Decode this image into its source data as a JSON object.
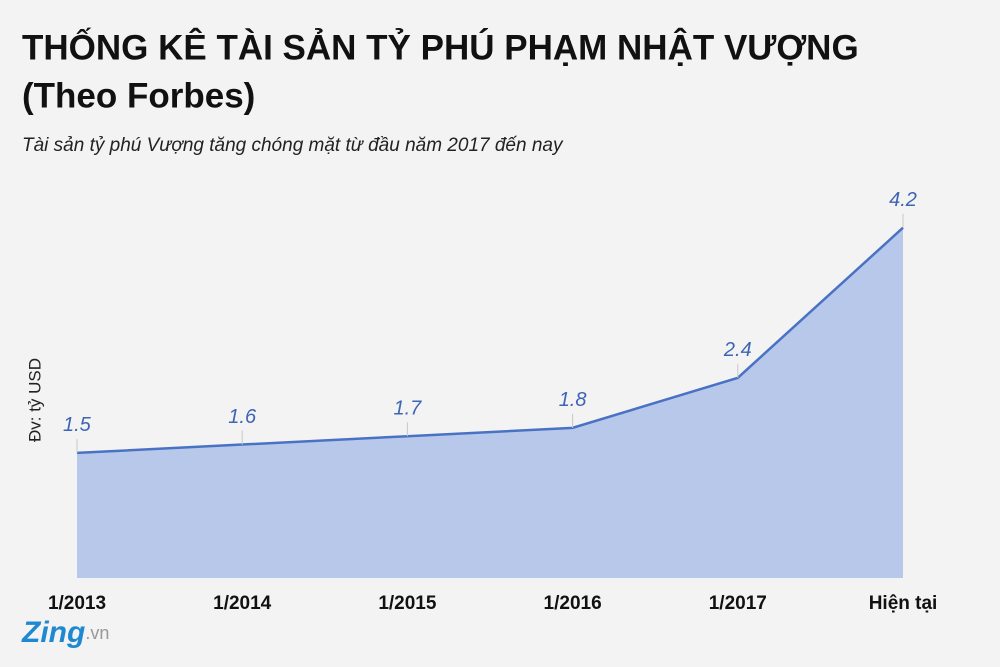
{
  "chart_data": {
    "type": "area",
    "title": [
      "THỐNG KÊ TÀI SẢN TỶ PHÚ PHẠM NHẬT VƯỢNG",
      "(Theo Forbes)"
    ],
    "subtitle": "Tài sản tỷ phú Vượng tăng chóng mặt từ đầu năm 2017 đến nay",
    "y_label": "Đv: tỷ USD",
    "categories": [
      "1/2013",
      "1/2014",
      "1/2015",
      "1/2016",
      "1/2017",
      "Hiện tại"
    ],
    "values": [
      1.5,
      1.6,
      1.7,
      1.8,
      2.4,
      4.2
    ],
    "color": "#4a72c4",
    "fill": "#b8c8ea",
    "ylim": [
      0,
      5
    ],
    "logo": {
      "name": "Zing",
      "domain": ".vn"
    }
  }
}
